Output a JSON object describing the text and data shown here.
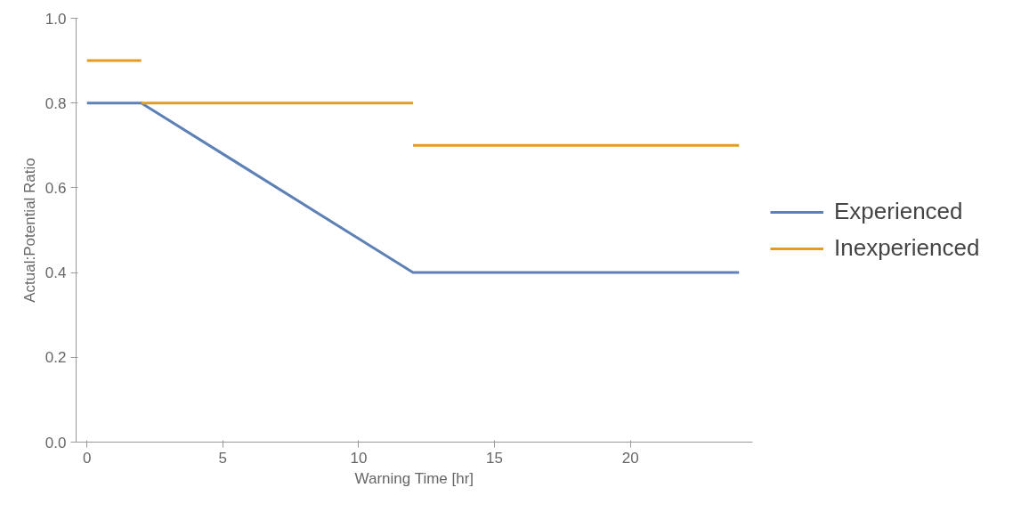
{
  "chart_data": {
    "type": "line",
    "xlabel": "Warning Time [hr]",
    "ylabel": "Actual:Potential Ratio",
    "xlim": [
      -0.4,
      24.5
    ],
    "ylim": [
      0,
      1.0
    ],
    "xticks": [
      0,
      5,
      10,
      15,
      20
    ],
    "yticks": [
      {
        "value": 0,
        "label": "0.0"
      },
      {
        "value": 0.2,
        "label": "0.2"
      },
      {
        "value": 0.4,
        "label": "0.4"
      },
      {
        "value": 0.6,
        "label": "0.6"
      },
      {
        "value": 0.8,
        "label": "0.8"
      },
      {
        "value": 1.0,
        "label": "1.0"
      }
    ],
    "grid": false,
    "legend": "right",
    "line_style": "solid",
    "series": [
      {
        "name": "Experienced",
        "color": "#5e81b5",
        "x": [
          0,
          2,
          12,
          24
        ],
        "values": [
          0.8,
          0.8,
          0.4,
          0.4
        ]
      },
      {
        "name": "Inexperienced",
        "color": "#e19c24",
        "x": [
          0,
          2
        ],
        "values": [
          0.9,
          0.9
        ]
      },
      {
        "color": "#e19c24",
        "x": [
          2,
          12
        ],
        "values": [
          0.8,
          0.8
        ]
      },
      {
        "color": "#e19c24",
        "x": [
          12,
          24
        ],
        "values": [
          0.7,
          0.7
        ]
      }
    ]
  }
}
